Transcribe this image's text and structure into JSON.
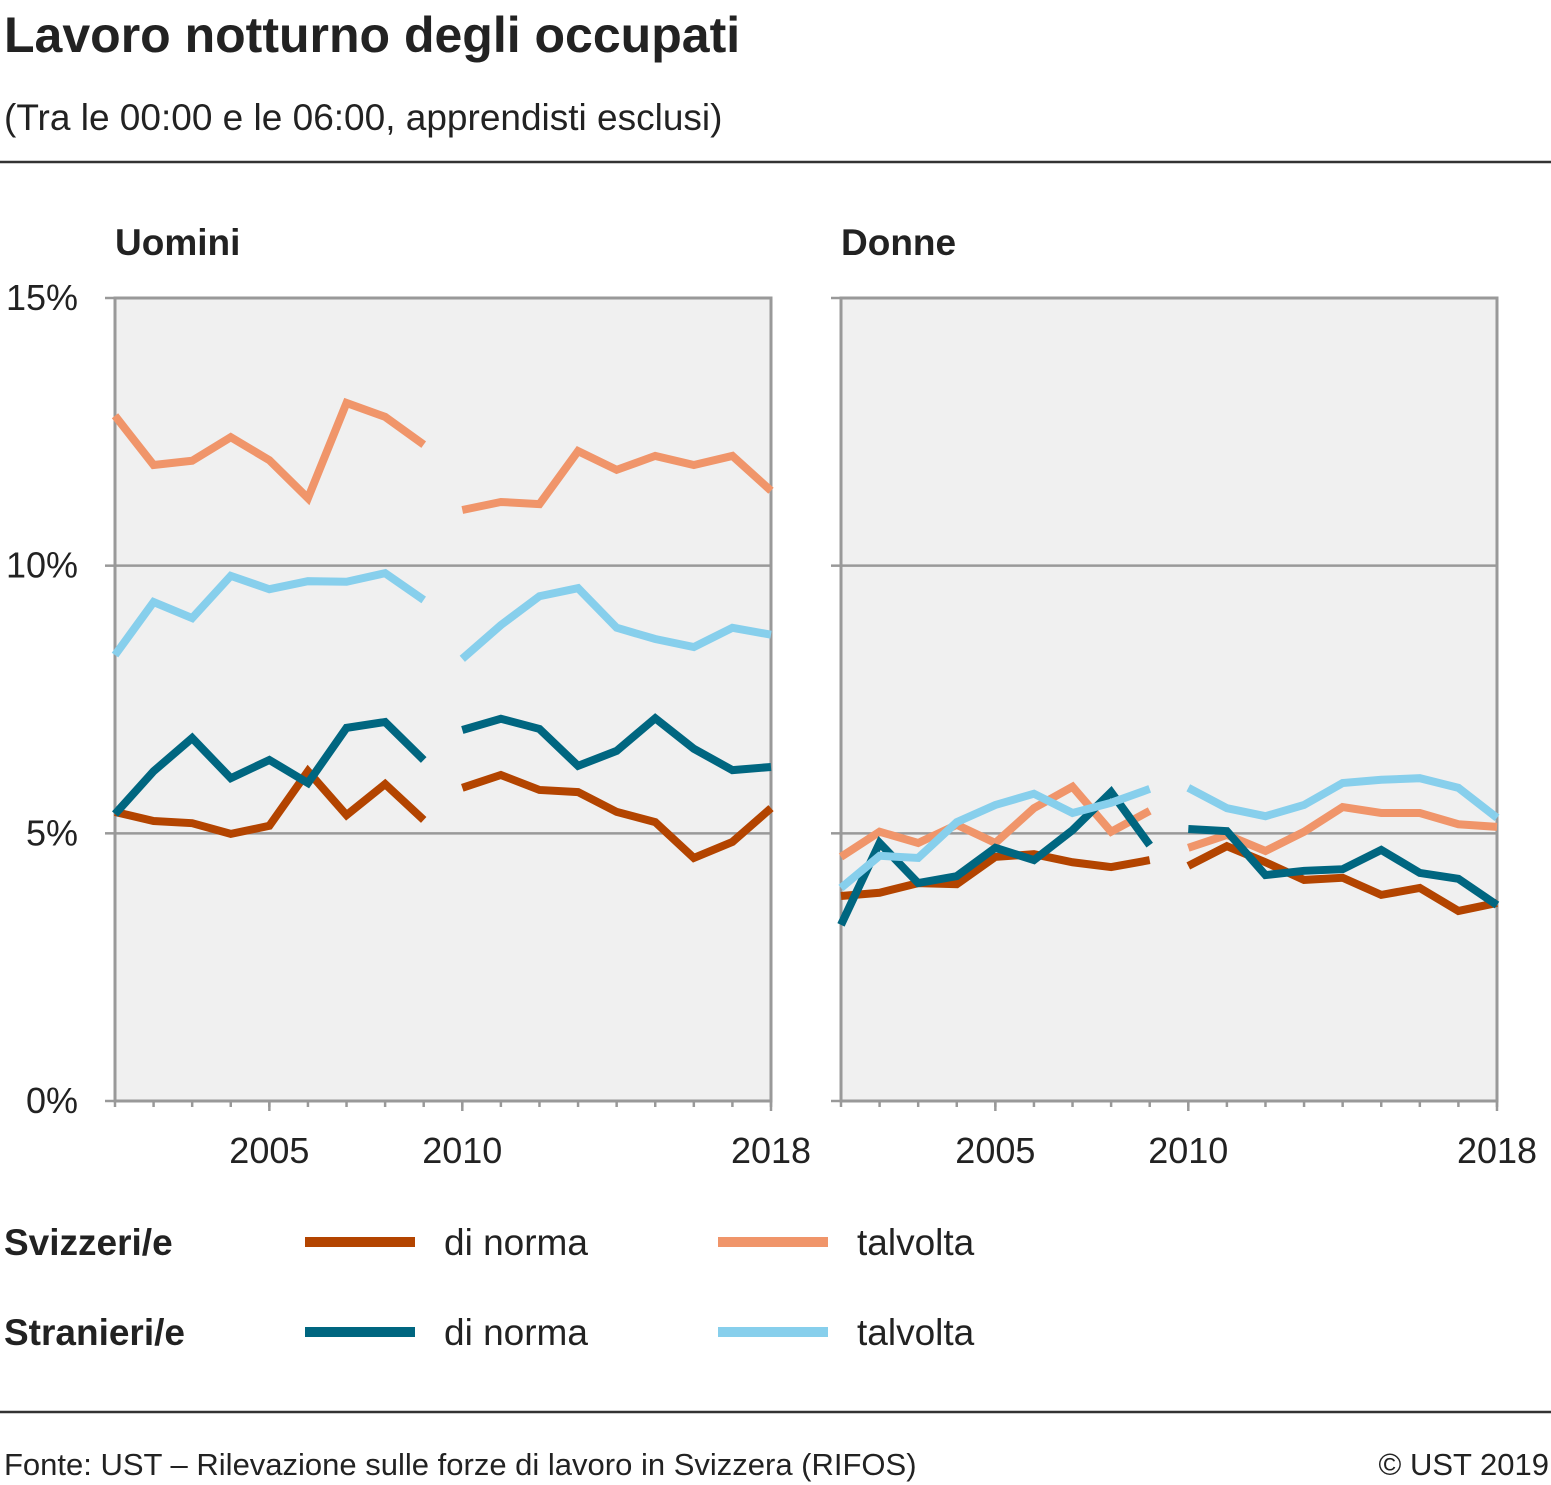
{
  "header": {
    "title": "Lavoro notturno degli occupati",
    "subtitle": "(Tra le 00:00 e le 06:00, apprendisti esclusi)"
  },
  "legend_groups": [
    "Svizzeri/e",
    "Stranieri/e"
  ],
  "footer": {
    "source": "Fonte: UST – Rilevazione sulle forze di lavoro in Svizzera (RIFOS)",
    "copyright": "© UST 2019"
  },
  "chart_data": [
    {
      "type": "line",
      "title": "Uomini",
      "x": [
        2001,
        2002,
        2003,
        2004,
        2005,
        2006,
        2007,
        2008,
        2009,
        2010,
        2011,
        2012,
        2013,
        2014,
        2015,
        2016,
        2017,
        2018
      ],
      "breaks": [
        2010
      ],
      "xlim": [
        2001,
        2018
      ],
      "xticks": [
        2005,
        2010,
        2018
      ],
      "ylim": [
        0,
        15
      ],
      "yticks": [
        {
          "value": 0,
          "label": "0%"
        },
        {
          "value": 5,
          "label": "5%"
        },
        {
          "value": 10,
          "label": "10%"
        },
        {
          "value": 15,
          "label": "15%"
        }
      ],
      "grid": true,
      "series": [
        {
          "name": "di norma",
          "color": "#b34400",
          "values": [
            5.4,
            5.23,
            5.19,
            4.99,
            5.14,
            6.16,
            5.34,
            5.92,
            5.25,
            5.85,
            6.09,
            5.81,
            5.77,
            5.4,
            5.21,
            4.54,
            4.84,
            5.47
          ]
        },
        {
          "name": "talvolta",
          "color": "#f0956a",
          "values": [
            12.8,
            11.88,
            11.96,
            12.4,
            11.97,
            11.26,
            13.04,
            12.78,
            12.26,
            11.04,
            11.19,
            11.15,
            12.14,
            11.79,
            12.05,
            11.88,
            12.05,
            11.4
          ]
        },
        {
          "name": "di norma",
          "color": "#006680",
          "values": [
            5.36,
            6.16,
            6.78,
            6.03,
            6.37,
            5.94,
            6.97,
            7.08,
            6.37,
            6.93,
            7.14,
            6.95,
            6.26,
            6.54,
            7.15,
            6.58,
            6.18,
            6.24
          ]
        },
        {
          "name": "talvolta",
          "color": "#87cfec",
          "values": [
            8.33,
            9.32,
            9.02,
            9.81,
            9.56,
            9.71,
            9.7,
            9.86,
            9.36,
            8.26,
            8.89,
            9.43,
            9.58,
            8.84,
            8.63,
            8.48,
            8.84,
            8.71
          ]
        }
      ]
    },
    {
      "type": "line",
      "title": "Donne",
      "x": [
        2001,
        2002,
        2003,
        2004,
        2005,
        2006,
        2007,
        2008,
        2009,
        2010,
        2011,
        2012,
        2013,
        2014,
        2015,
        2016,
        2017,
        2018
      ],
      "breaks": [
        2010
      ],
      "xlim": [
        2001,
        2018
      ],
      "xticks": [
        2005,
        2010,
        2018
      ],
      "ylim": [
        0,
        15
      ],
      "yticks": [
        0,
        5,
        10,
        15
      ],
      "ytick_labels": false,
      "grid": true,
      "series": [
        {
          "color": "#b34400",
          "values": [
            3.83,
            3.89,
            4.07,
            4.05,
            4.56,
            4.61,
            4.46,
            4.37,
            4.5,
            4.39,
            4.76,
            4.46,
            4.13,
            4.17,
            3.85,
            3.98,
            3.55,
            3.7
          ]
        },
        {
          "color": "#f0956a",
          "values": [
            4.56,
            5.03,
            4.82,
            5.16,
            4.82,
            5.47,
            5.87,
            5.03,
            5.42,
            4.73,
            4.97,
            4.67,
            5.03,
            5.49,
            5.38,
            5.38,
            5.17,
            5.12
          ]
        },
        {
          "color": "#006680",
          "values": [
            3.29,
            4.82,
            4.07,
            4.2,
            4.73,
            4.5,
            5.06,
            5.77,
            4.78,
            5.08,
            5.04,
            4.22,
            4.3,
            4.33,
            4.69,
            4.26,
            4.15,
            3.66
          ]
        },
        {
          "color": "#87cfec",
          "values": [
            3.98,
            4.58,
            4.54,
            5.21,
            5.53,
            5.74,
            5.38,
            5.57,
            5.83,
            5.85,
            5.47,
            5.32,
            5.53,
            5.94,
            6.0,
            6.03,
            5.85,
            5.29
          ]
        }
      ]
    }
  ]
}
